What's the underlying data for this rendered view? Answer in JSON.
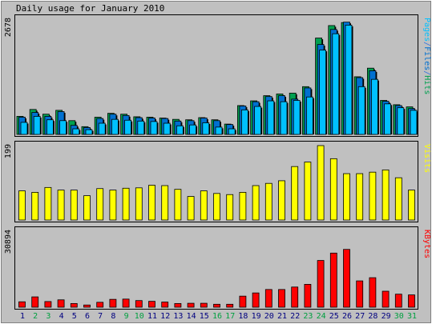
{
  "chart_data": {
    "type": "bar",
    "title": "Daily usage for January 2010",
    "x": [
      1,
      2,
      3,
      4,
      5,
      6,
      7,
      8,
      9,
      10,
      11,
      12,
      13,
      14,
      15,
      16,
      17,
      18,
      19,
      20,
      21,
      22,
      23,
      24,
      25,
      26,
      27,
      28,
      29,
      30,
      31
    ],
    "weekend_days": [
      2,
      3,
      9,
      10,
      16,
      17,
      23,
      24,
      30,
      31
    ],
    "panels": [
      {
        "name": "hits-files-pages",
        "ymax_label": "2678",
        "ylim": [
          0,
          2678
        ],
        "legend": [
          {
            "text": "Pages",
            "color": "#00c0ff"
          },
          {
            "text": "/",
            "color": "#3070e0"
          },
          {
            "text": "Files",
            "color": "#0070d0"
          },
          {
            "text": "/",
            "color": "#3070e0"
          },
          {
            "text": "Hits",
            "color": "#00a050"
          }
        ],
        "series": [
          {
            "name": "Hits",
            "color": "#00a050",
            "values": [
              420,
              580,
              470,
              560,
              320,
              180,
              400,
              490,
              470,
              410,
              400,
              380,
              350,
              340,
              390,
              340,
              240,
              670,
              780,
              900,
              940,
              960,
              1110,
              2240,
              2530,
              2600,
              1340,
              1540,
              790,
              690,
              640
            ]
          },
          {
            "name": "Files",
            "color": "#0070d0",
            "values": [
              400,
              510,
              420,
              530,
              210,
              160,
              370,
              470,
              440,
              390,
              380,
              370,
              310,
              320,
              380,
              320,
              230,
              660,
              760,
              880,
              900,
              820,
              1080,
              2090,
              2440,
              2610,
              1320,
              1480,
              770,
              670,
              600
            ]
          },
          {
            "name": "Pages",
            "color": "#00c0ff",
            "values": [
              280,
              420,
              340,
              320,
              130,
              110,
              260,
              350,
              330,
              310,
              300,
              260,
              200,
              220,
              270,
              170,
              130,
              570,
              650,
              780,
              760,
              790,
              870,
              1960,
              2340,
              2540,
              1110,
              1280,
              710,
              620,
              560
            ]
          }
        ]
      },
      {
        "name": "visits",
        "ymax_label": "199",
        "ylim": [
          0,
          199
        ],
        "legend": [
          {
            "text": "Visits",
            "color": "#ffff00"
          }
        ],
        "series": [
          {
            "name": "Visits",
            "color": "#ffff00",
            "values": [
              78,
              74,
              87,
              80,
              80,
              65,
              84,
              80,
              85,
              86,
              93,
              92,
              82,
              63,
              78,
              71,
              68,
              74,
              92,
              98,
              105,
              143,
              155,
              199,
              164,
              124,
              124,
              128,
              134,
              113,
              80
            ]
          }
        ]
      },
      {
        "name": "kbytes",
        "ymax_label": "30894",
        "ylim": [
          0,
          30894
        ],
        "legend": [
          {
            "text": "KBytes",
            "color": "#ff0000"
          }
        ],
        "series": [
          {
            "name": "KBytes",
            "color": "#ff0000",
            "values": [
              2200,
              4200,
              2300,
              3000,
              1500,
              900,
              2000,
              3200,
              3300,
              2700,
              2400,
              2100,
              1500,
              1600,
              1600,
              1200,
              1200,
              4500,
              5800,
              7200,
              7200,
              8200,
              9300,
              19000,
              22000,
              23500,
              10700,
              12000,
              6500,
              5300,
              5000
            ]
          }
        ]
      }
    ]
  }
}
